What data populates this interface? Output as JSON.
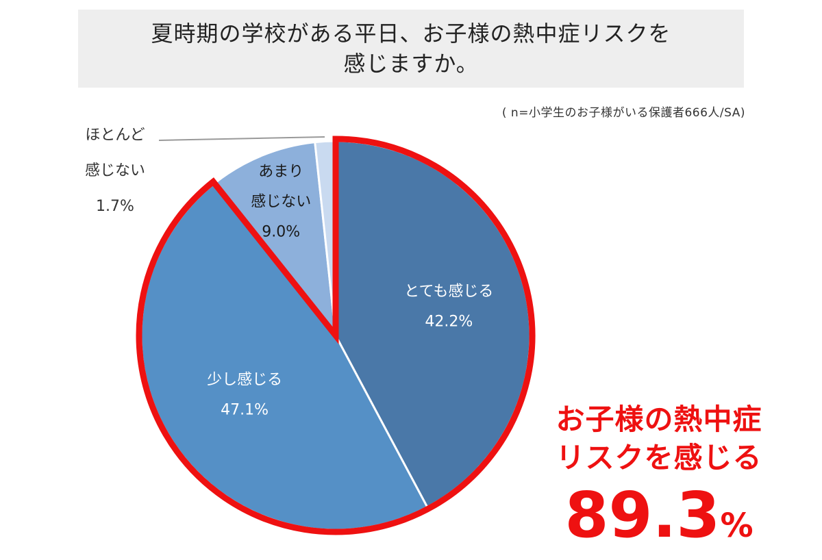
{
  "title": {
    "line1": "夏時期の学校がある平日、お子様の熱中症リスクを",
    "line2": "感じますか。"
  },
  "note": "( n=小学生のお子様がいる保護者666人/SA)",
  "chart_data": {
    "type": "pie",
    "slices": [
      {
        "label": "とても感じる",
        "value": 42.2,
        "value_label": "42.2%",
        "color": "#4a78a8",
        "text_color": "#ffffff"
      },
      {
        "label": "少し感じる",
        "value": 47.1,
        "value_label": "47.1%",
        "color": "#5590c6",
        "text_color": "#ffffff"
      },
      {
        "label": "あまり\n感じない",
        "value": 9.0,
        "value_label": "9.0%",
        "color": "#8db0db",
        "text_color": "#1a1a1a"
      },
      {
        "label": "ほとんど\n感じない",
        "value": 1.7,
        "value_label": "1.7%",
        "color": "#c9daf0",
        "text_color": "#333333"
      }
    ],
    "highlight": {
      "slices": [
        "とても感じる",
        "少し感じる"
      ],
      "outline_color": "#ee1111"
    }
  },
  "outside_label": {
    "line1": "ほとんど",
    "line2": "感じない",
    "value": "1.7%"
  },
  "callout": {
    "line1": "お子様の熱中症",
    "line2": "リスクを感じる",
    "number": "89.3",
    "unit": "%"
  }
}
